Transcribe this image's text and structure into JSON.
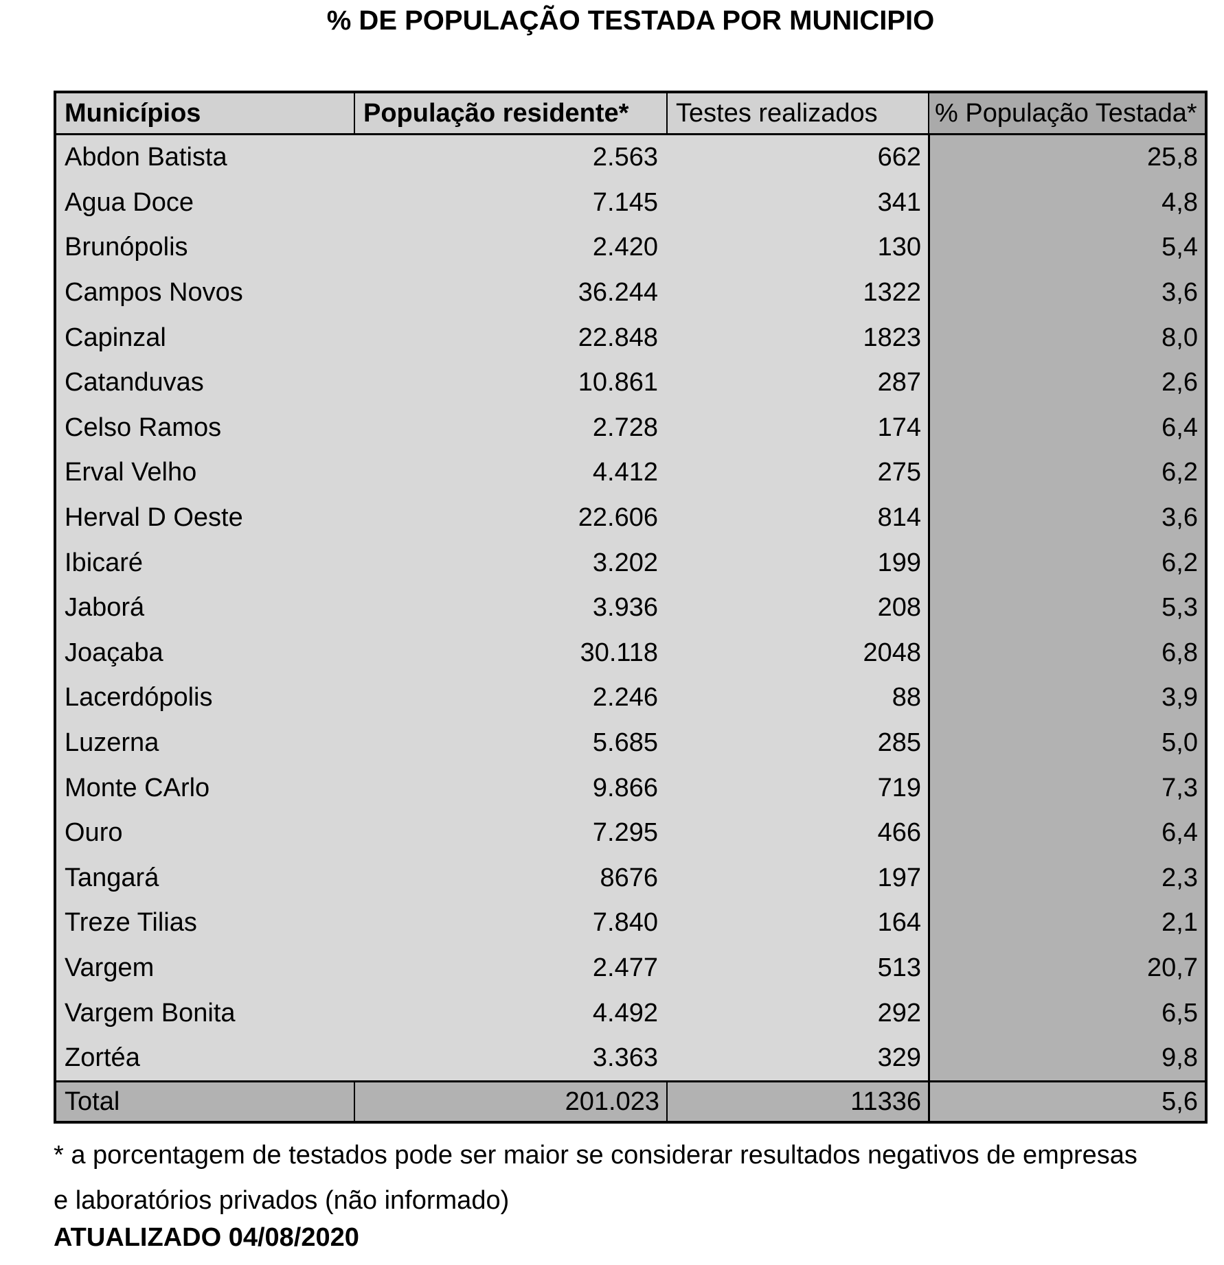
{
  "title": "% DE POPULAÇÃO TESTADA POR MUNICIPIO",
  "chart_data": {
    "type": "table",
    "title": "% DE POPULAÇÃO TESTADA POR MUNICIPIO",
    "columns": [
      "Municípios",
      "População residente*",
      "Testes realizados",
      "% População Testada*"
    ],
    "rows": [
      [
        "Abdon Batista",
        "2.563",
        "662",
        "25,8"
      ],
      [
        "Agua Doce",
        "7.145",
        "341",
        "4,8"
      ],
      [
        "Brunópolis",
        "2.420",
        "130",
        "5,4"
      ],
      [
        "Campos Novos",
        "36.244",
        "1322",
        "3,6"
      ],
      [
        "Capinzal",
        "22.848",
        "1823",
        "8,0"
      ],
      [
        "Catanduvas",
        "10.861",
        "287",
        "2,6"
      ],
      [
        "Celso Ramos",
        "2.728",
        "174",
        "6,4"
      ],
      [
        "Erval Velho",
        "4.412",
        "275",
        "6,2"
      ],
      [
        "Herval D Oeste",
        "22.606",
        "814",
        "3,6"
      ],
      [
        "Ibicaré",
        "3.202",
        "199",
        "6,2"
      ],
      [
        "Jaborá",
        "3.936",
        "208",
        "5,3"
      ],
      [
        "Joaçaba",
        "30.118",
        "2048",
        "6,8"
      ],
      [
        "Lacerdópolis",
        "2.246",
        "88",
        "3,9"
      ],
      [
        "Luzerna",
        "5.685",
        "285",
        "5,0"
      ],
      [
        "Monte CArlo",
        "9.866",
        "719",
        "7,3"
      ],
      [
        "Ouro",
        "7.295",
        "466",
        "6,4"
      ],
      [
        "Tangará",
        "8676",
        "197",
        "2,3"
      ],
      [
        "Treze Tilias",
        "7.840",
        "164",
        "2,1"
      ],
      [
        "Vargem",
        "2.477",
        "513",
        "20,7"
      ],
      [
        "Vargem Bonita",
        "4.492",
        "292",
        "6,5"
      ],
      [
        "Zortéa",
        "3.363",
        "329",
        "9,8"
      ]
    ],
    "total_row": [
      "Total",
      "201.023",
      "11336",
      "5,6"
    ]
  },
  "footnote": {
    "line1": "* a porcentagem de testados pode ser maior se considerar resultados negativos de empresas",
    "line2": "e laboratórios privados (não informado)"
  },
  "updated": "ATUALIZADO 04/08/2020",
  "colors": {
    "body_light": "#d8d8d8",
    "body_dark": "#b2b2b2",
    "header_light": "#d2d2d2",
    "header_dark": "#aaaaaa",
    "total_bg": "#b2b2b2",
    "border": "#000000"
  }
}
